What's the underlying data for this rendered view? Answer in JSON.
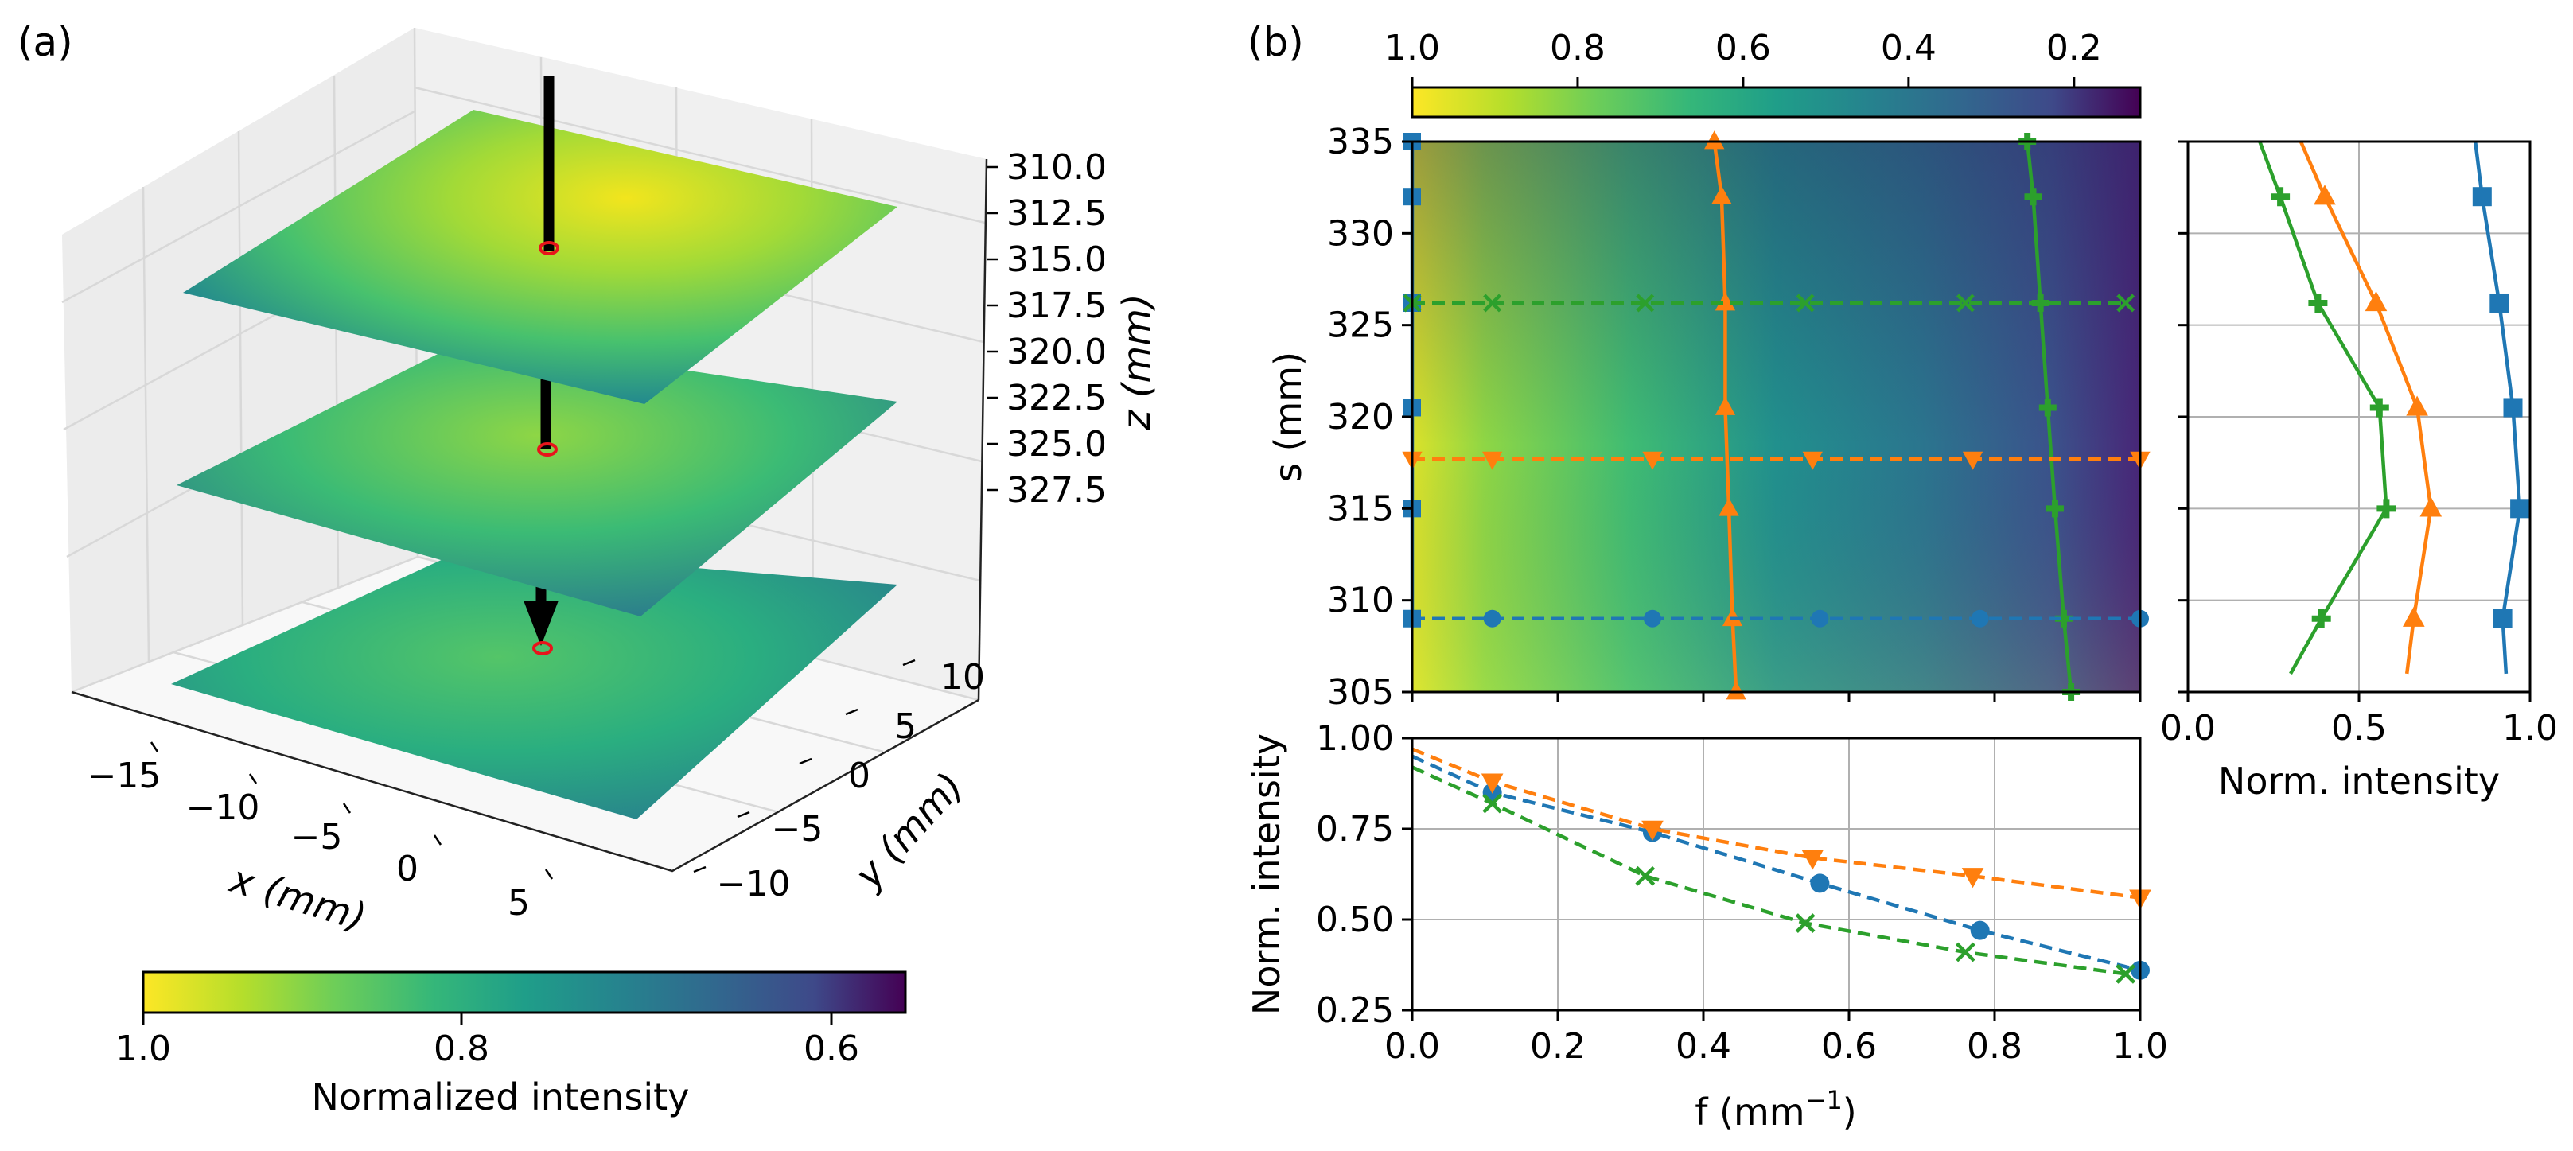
{
  "panel_a": {
    "label": "(a)",
    "colorbar_label": "Normalized intensity",
    "colorbar_ticks": [
      "1.0",
      "0.8",
      "0.6"
    ],
    "x_label": "x (mm)",
    "y_label": "y (mm)",
    "z_label": "z (mm)"
  },
  "panel_b": {
    "label": "(b)",
    "colorbar_ticks": [
      "1.0",
      "0.8",
      "0.6",
      "0.4",
      "0.2"
    ]
  },
  "chart_data": [
    {
      "id": "3d-planes",
      "type": "surface",
      "x_ticks": [
        -15,
        -10,
        -5,
        0,
        5
      ],
      "y_ticks": [
        -10,
        -5,
        0,
        5,
        10
      ],
      "z_ticks": [
        310.0,
        312.5,
        315.0,
        317.5,
        320.0,
        322.5,
        325.0,
        327.5
      ],
      "z_inverted": true,
      "planes_z": [
        313,
        319,
        325
      ],
      "colorbar_range": [
        1.0,
        0.55
      ],
      "colormap": "viridis-reversed",
      "beam_arrow": "vertical, top to bottom",
      "beam_spot_color": "#e8141b"
    },
    {
      "id": "heatmap",
      "type": "heatmap",
      "xlim": [
        0,
        1.0
      ],
      "ylim": [
        305,
        335
      ],
      "ylabel": "s (mm)",
      "y_ticks": [
        305,
        310,
        315,
        320,
        325,
        330,
        335
      ],
      "colorbar_range": [
        1.0,
        0.12
      ],
      "series": [
        {
          "name": "",
          "orientation": "vertical",
          "color": "#1f77b4",
          "marker": "square",
          "x": [
            0.0,
            0.0,
            0.0,
            0.0,
            0.0,
            0.0
          ],
          "y": [
            309,
            315,
            320.5,
            326.2,
            332,
            335
          ]
        },
        {
          "name": "",
          "orientation": "vertical",
          "color": "#ff7f0e",
          "marker": "triangle-up",
          "x": [
            0.445,
            0.44,
            0.435,
            0.43,
            0.43,
            0.425,
            0.415
          ],
          "y": [
            305,
            309,
            315,
            320.5,
            326.2,
            332,
            335
          ]
        },
        {
          "name": "",
          "orientation": "vertical",
          "color": "#2ca02c",
          "marker": "plus",
          "x": [
            0.905,
            0.895,
            0.883,
            0.873,
            0.863,
            0.853,
            0.845
          ],
          "y": [
            305,
            309,
            315,
            320.5,
            326.2,
            332,
            335
          ]
        },
        {
          "name": "",
          "orientation": "horizontal",
          "color": "#1f77b4",
          "marker": "circle",
          "x": [
            0.0,
            0.11,
            0.33,
            0.56,
            0.78,
            1.0
          ],
          "y": [
            309,
            309,
            309,
            309,
            309,
            309
          ]
        },
        {
          "name": "",
          "orientation": "horizontal",
          "color": "#ff7f0e",
          "marker": "triangle-down",
          "x": [
            0.0,
            0.11,
            0.33,
            0.55,
            0.77,
            1.0
          ],
          "y": [
            317.7,
            317.7,
            317.7,
            317.7,
            317.7,
            317.7
          ]
        },
        {
          "name": "",
          "orientation": "horizontal",
          "color": "#2ca02c",
          "marker": "x",
          "x": [
            0.0,
            0.11,
            0.32,
            0.54,
            0.76,
            0.98
          ],
          "y": [
            326.2,
            326.2,
            326.2,
            326.2,
            326.2,
            326.2
          ]
        }
      ]
    },
    {
      "id": "bottom-profile",
      "type": "line",
      "xlim": [
        0,
        1.0
      ],
      "ylim": [
        0.25,
        1.0
      ],
      "xlabel_main": "f (mm",
      "xlabel_sup": "−1",
      "xlabel_end": ")",
      "ylabel": "Norm. intensity",
      "x_ticks": [
        "0.0",
        "0.2",
        "0.4",
        "0.6",
        "0.8",
        "1.0"
      ],
      "y_ticks": [
        "0.25",
        "0.50",
        "0.75",
        "1.00"
      ],
      "grid": true,
      "series": [
        {
          "name": "",
          "color": "#1f77b4",
          "marker": "circle",
          "x": [
            0.0,
            0.11,
            0.33,
            0.56,
            0.78,
            1.0
          ],
          "y": [
            0.95,
            0.85,
            0.74,
            0.6,
            0.47,
            0.36
          ]
        },
        {
          "name": "",
          "color": "#ff7f0e",
          "marker": "triangle-down",
          "x": [
            0.0,
            0.11,
            0.33,
            0.55,
            0.77,
            1.0
          ],
          "y": [
            0.97,
            0.88,
            0.75,
            0.67,
            0.62,
            0.56
          ]
        },
        {
          "name": "",
          "color": "#2ca02c",
          "marker": "x",
          "x": [
            0.0,
            0.11,
            0.32,
            0.54,
            0.76,
            0.98
          ],
          "y": [
            0.92,
            0.82,
            0.62,
            0.49,
            0.41,
            0.35
          ]
        }
      ]
    },
    {
      "id": "right-profile",
      "type": "line",
      "xlim": [
        0,
        1.0
      ],
      "ylim": [
        305,
        335
      ],
      "xlabel": "Norm. intensity",
      "x_ticks": [
        "0.0",
        "0.5",
        "1.0"
      ],
      "grid": true,
      "series": [
        {
          "name": "",
          "color": "#1f77b4",
          "marker": "square",
          "x": [
            0.93,
            0.92,
            0.97,
            0.95,
            0.91,
            0.86,
            0.84
          ],
          "y": [
            306,
            309,
            315,
            320.5,
            326.2,
            332,
            335
          ]
        },
        {
          "name": "",
          "color": "#ff7f0e",
          "marker": "triangle-up",
          "x": [
            0.64,
            0.66,
            0.71,
            0.67,
            0.55,
            0.4,
            0.33
          ],
          "y": [
            306,
            309,
            315,
            320.5,
            326.2,
            332,
            335
          ]
        },
        {
          "name": "",
          "color": "#2ca02c",
          "marker": "plus",
          "x": [
            0.3,
            0.39,
            0.58,
            0.56,
            0.38,
            0.27,
            0.21
          ],
          "y": [
            306,
            309,
            315,
            320.5,
            326.2,
            332,
            335
          ]
        }
      ]
    }
  ]
}
